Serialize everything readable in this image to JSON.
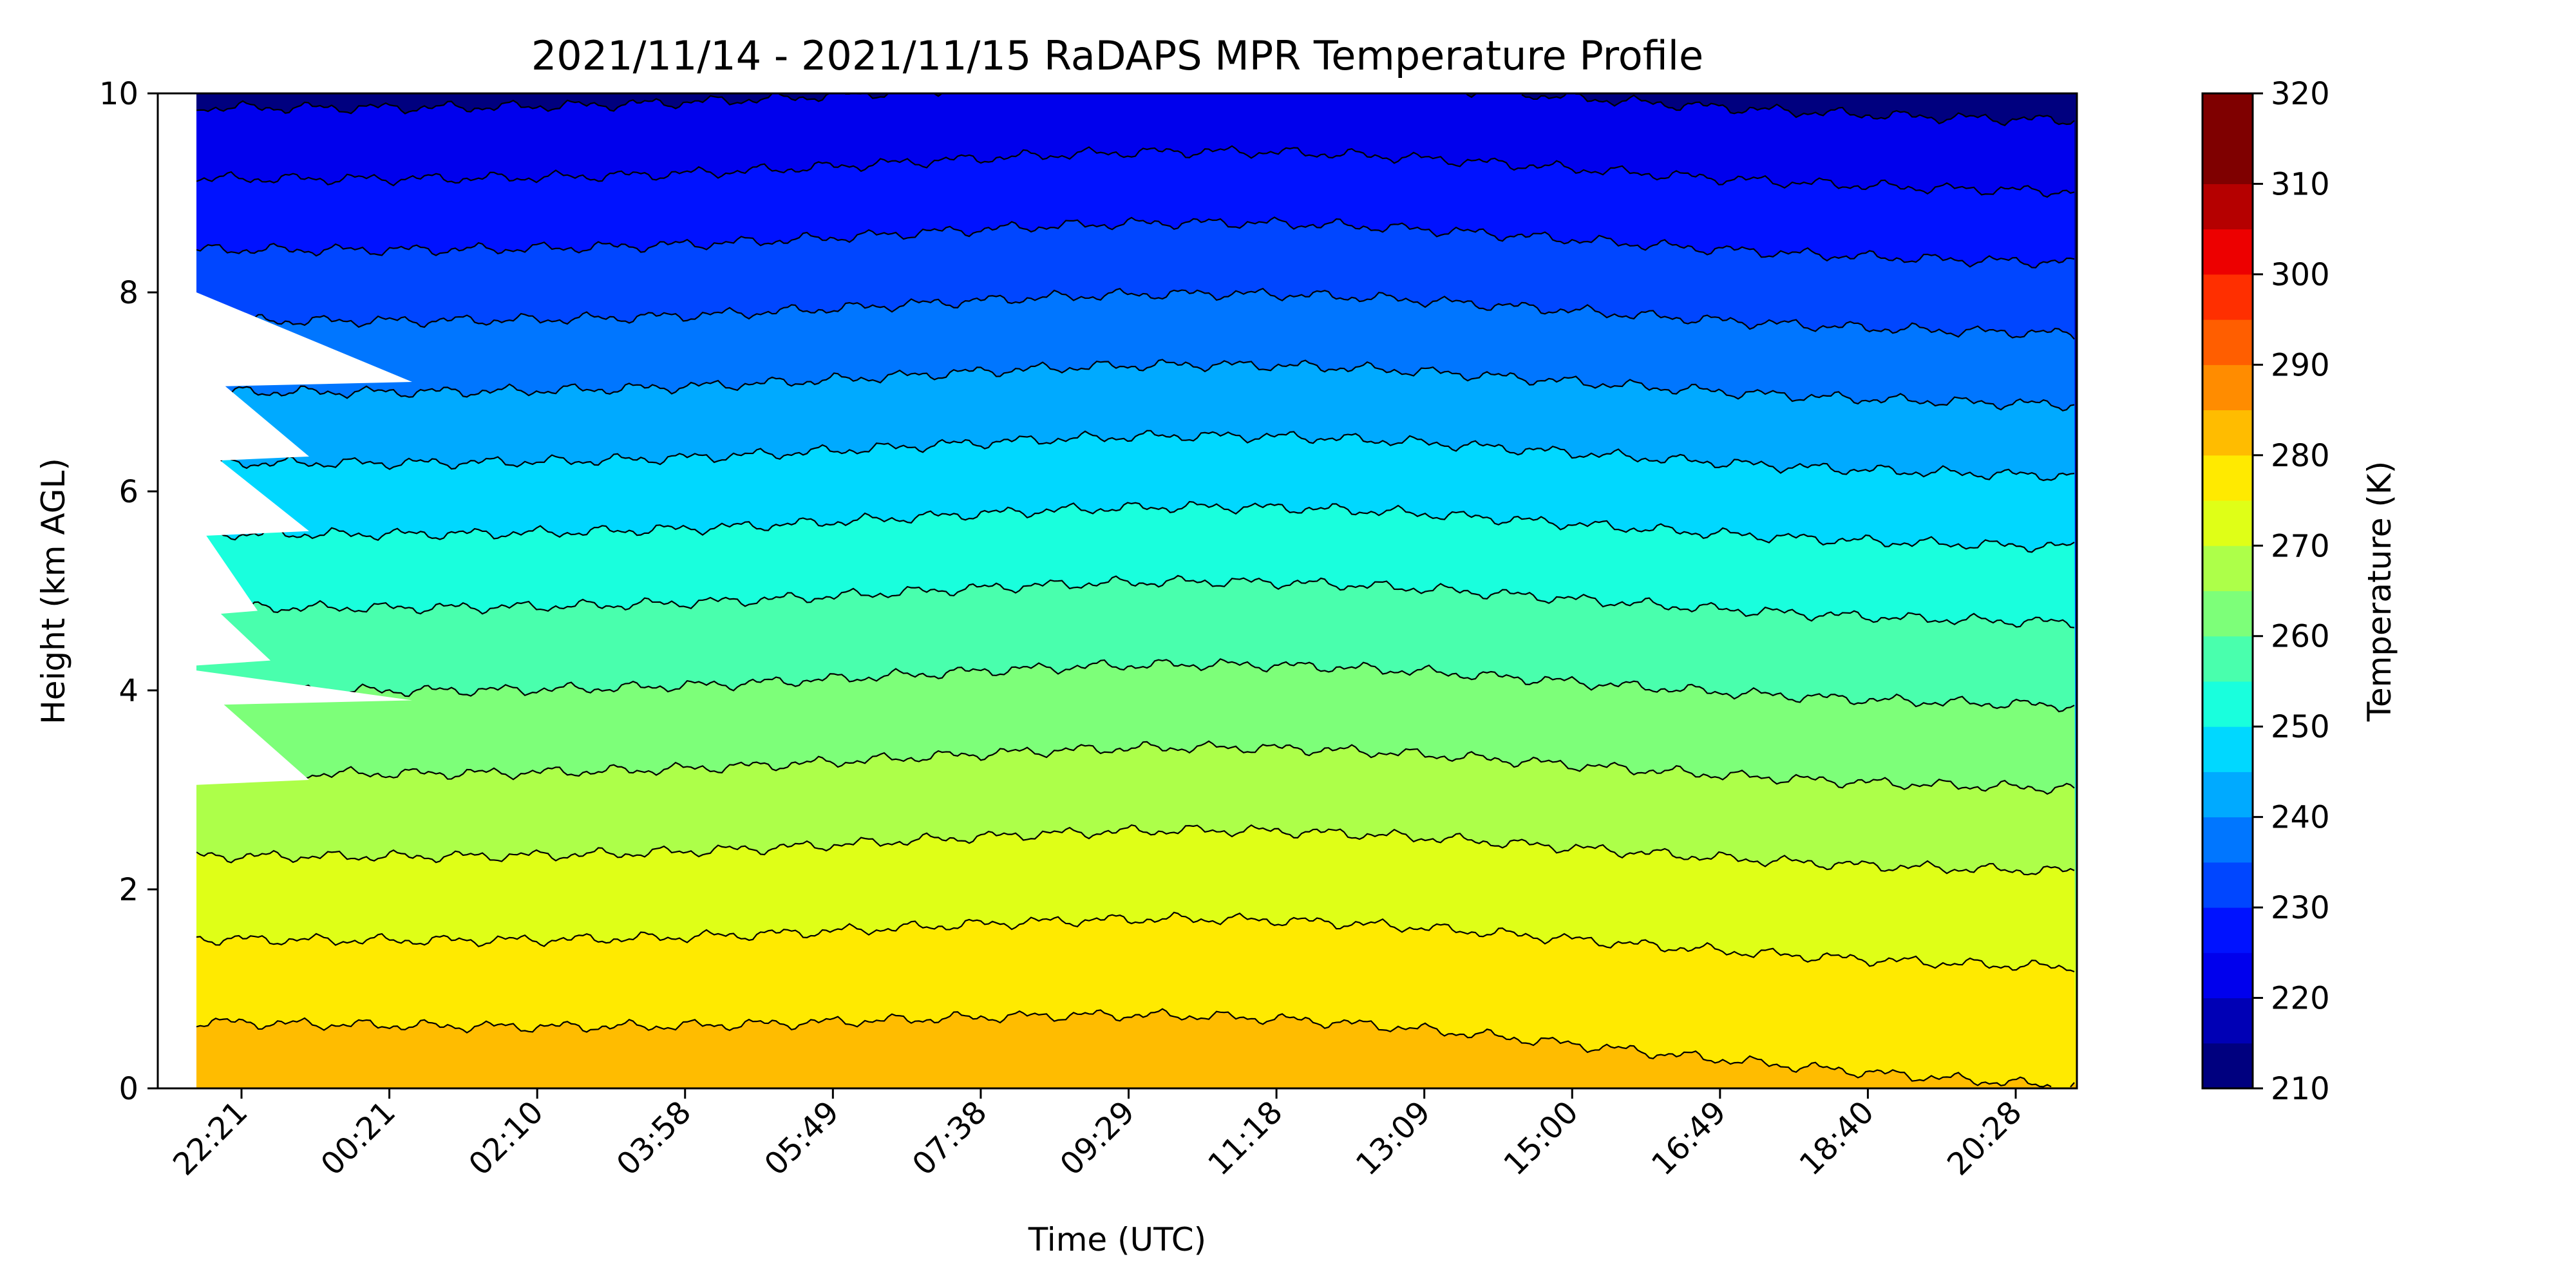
{
  "chart_data": {
    "type": "heatmap",
    "subtype": "filled-contour",
    "title": "2021/11/14 - 2021/11/15 RaDAPS MPR Temperature Profile",
    "xlabel": "Time (UTC)",
    "ylabel": "Height (km AGL)",
    "x_tick_labels": [
      "22:21",
      "00:21",
      "02:10",
      "03:58",
      "05:49",
      "07:38",
      "09:29",
      "11:18",
      "13:09",
      "15:00",
      "16:49",
      "18:40",
      "20:28"
    ],
    "x_tick_rotation_deg": 45,
    "yticks": [
      0,
      2,
      4,
      6,
      8,
      10
    ],
    "ylim": [
      0,
      10
    ],
    "colorbar": {
      "label": "Temperature (K)",
      "ticks": [
        210,
        220,
        230,
        240,
        250,
        260,
        270,
        280,
        290,
        300,
        310,
        320
      ],
      "levels": [
        210,
        215,
        220,
        225,
        230,
        235,
        240,
        245,
        250,
        255,
        260,
        265,
        270,
        275,
        280,
        285,
        290,
        295,
        300,
        305,
        310,
        315,
        320
      ],
      "colors": [
        "#00007f",
        "#0000b5",
        "#0000ed",
        "#0012ff",
        "#0046ff",
        "#0076ff",
        "#00aaff",
        "#00d8ff",
        "#19ffdd",
        "#49ffad",
        "#7dff79",
        "#adff49",
        "#dfff17",
        "#ffea00",
        "#ffbc00",
        "#ff8c00",
        "#ff5e00",
        "#ff2f00",
        "#ed0000",
        "#b50000",
        "#7f0000",
        "#7f0000"
      ],
      "range": [
        210,
        320
      ]
    },
    "contour_line_color": "#000000",
    "profile_height_km": [
      0,
      1,
      2,
      3,
      4,
      5,
      6,
      7,
      8,
      9,
      10
    ],
    "profile_temperature_K_start": [
      284,
      278,
      272,
      266,
      260,
      254,
      247,
      240,
      233,
      226,
      219
    ],
    "profile_temperature_K_end": [
      280,
      276,
      271,
      265,
      259,
      253,
      246,
      239,
      232,
      225,
      218
    ],
    "missing_data_region": "early period, heights 3-8 km"
  }
}
